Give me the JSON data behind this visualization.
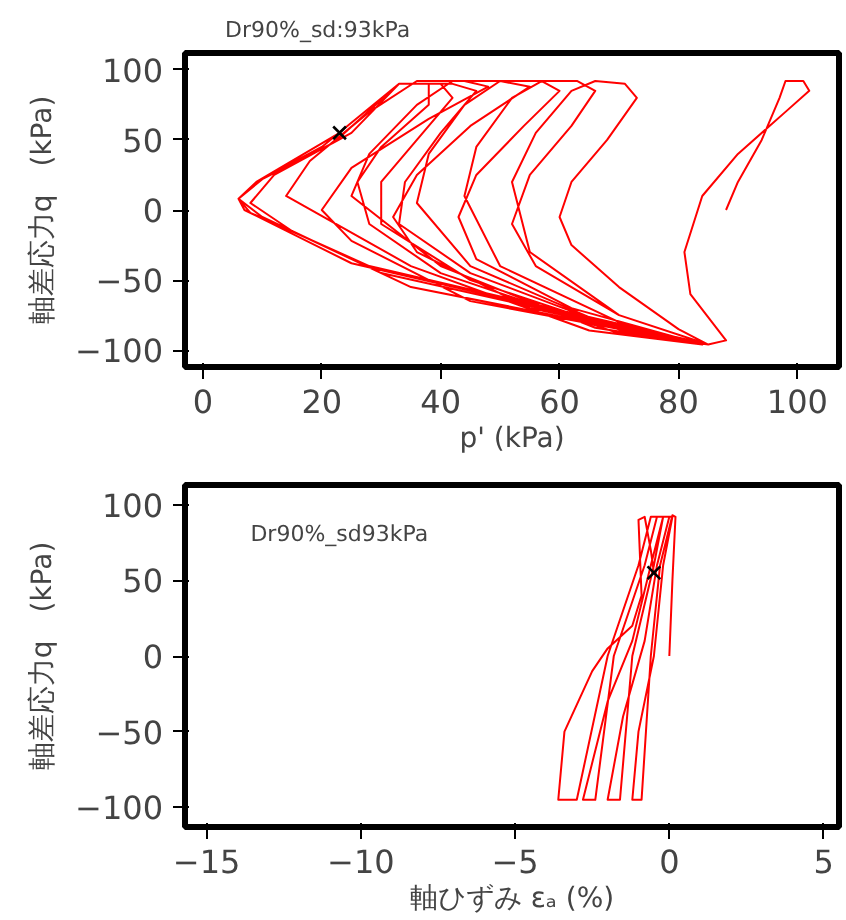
{
  "chart_data": [
    {
      "type": "line",
      "title": "Dr90%_sd:93kPa",
      "xlabel": "p' (kPa)",
      "ylabel": "軸差応力q　(kPa)",
      "xlim": [
        -3,
        107
      ],
      "ylim": [
        -112,
        112
      ],
      "xticks": [
        0,
        20,
        40,
        60,
        80,
        100
      ],
      "yticks": [
        -100,
        -50,
        0,
        50,
        100
      ],
      "grid": false,
      "line_style": "solid",
      "series": [
        {
          "color": "#ff0000",
          "x": [
            88,
            90,
            94,
            97,
            98,
            101,
            102,
            98,
            90,
            84,
            81,
            82,
            88,
            85,
            80,
            70,
            62,
            60,
            62,
            68,
            73,
            71,
            66,
            62,
            56,
            52,
            55,
            70,
            85,
            70,
            56,
            52,
            55,
            62,
            66,
            63,
            57,
            52,
            46,
            44,
            50,
            70,
            84,
            62,
            46,
            43,
            46,
            54,
            60,
            57,
            50,
            44,
            38,
            36,
            45,
            68,
            84,
            55,
            36,
            32,
            36,
            45,
            55,
            50,
            42,
            36,
            28,
            25,
            40,
            66,
            84,
            45,
            25,
            20,
            25,
            38,
            48,
            44,
            36,
            28,
            18,
            14,
            35,
            65,
            84,
            35,
            15,
            8,
            12,
            25,
            33,
            42,
            46,
            40,
            34,
            33,
            45,
            70,
            84,
            30,
            10,
            6,
            10,
            22,
            33,
            40,
            42,
            36,
            30,
            30,
            45,
            72,
            85,
            28,
            8,
            6,
            9,
            20,
            33,
            38,
            38,
            30,
            26,
            28,
            40,
            70,
            84,
            25,
            7,
            6,
            9,
            23
          ],
          "values": [
            0,
            20,
            50,
            80,
            92,
            92,
            85,
            70,
            40,
            10,
            -30,
            -60,
            -93,
            -96,
            -85,
            -55,
            -25,
            -5,
            20,
            50,
            80,
            90,
            92,
            85,
            55,
            20,
            -30,
            -75,
            -96,
            -75,
            -40,
            -10,
            25,
            60,
            85,
            92,
            92,
            80,
            45,
            10,
            -40,
            -80,
            -96,
            -70,
            -35,
            -5,
            25,
            60,
            85,
            92,
            92,
            75,
            40,
            5,
            -40,
            -82,
            -96,
            -70,
            -30,
            -5,
            25,
            60,
            88,
            92,
            92,
            75,
            40,
            10,
            -40,
            -84,
            -96,
            -65,
            -22,
            0,
            30,
            65,
            88,
            92,
            92,
            70,
            35,
            10,
            -40,
            -86,
            -96,
            -55,
            -15,
            5,
            25,
            55,
            90,
            90,
            85,
            55,
            20,
            -10,
            -45,
            -85,
            -96,
            -45,
            -5,
            8,
            22,
            48,
            90,
            90,
            80,
            50,
            20,
            -10,
            -50,
            -88,
            -96,
            -40,
            -2,
            8,
            20,
            45,
            90,
            90,
            75,
            45,
            20,
            -10,
            -45,
            -88,
            -96,
            -38,
            0,
            8,
            20,
            55
          ]
        },
        {
          "type": "scatter",
          "marker": "cross",
          "color": "#000000",
          "x": [
            23
          ],
          "values": [
            55
          ]
        }
      ]
    },
    {
      "type": "line",
      "xlabel": "軸ひずみ εₐ (%)",
      "ylabel": "軸差応力q　(kPa)",
      "xlim": [
        -15.7,
        5.5
      ],
      "ylim": [
        -113,
        113
      ],
      "xticks": [
        -15,
        -10,
        -5,
        0,
        5
      ],
      "yticks": [
        -100,
        -50,
        0,
        50,
        100
      ],
      "grid": false,
      "line_style": "solid",
      "annotations": [
        "Dr90%_sd93kPa"
      ],
      "series": [
        {
          "color": "#ff0000",
          "x": [
            0,
            0.1,
            0.2,
            0.1,
            -0.3,
            -0.6,
            -0.9,
            -1.2,
            -1.0,
            -0.5,
            -0.2,
            0.1,
            -0.2,
            -0.5,
            -1.2,
            -1.6,
            -2.0,
            -1.5,
            -0.8,
            -0.4,
            0.0,
            -0.4,
            -0.8,
            -1.8,
            -2.4,
            -2.8,
            -2.0,
            -1.2,
            -0.6,
            -0.2,
            -0.6,
            -1.0,
            -2.0,
            -3.0,
            -3.6,
            -3.4,
            -2.5,
            -2.0,
            -1.2,
            -0.9,
            -1.0,
            -0.8,
            -0.6,
            -0.5
          ],
          "values": [
            0,
            50,
            92,
            93,
            60,
            0,
            -95,
            -95,
            -50,
            0,
            60,
            92,
            92,
            60,
            0,
            -95,
            -95,
            -40,
            10,
            60,
            92,
            92,
            60,
            0,
            -95,
            -95,
            -30,
            10,
            60,
            92,
            92,
            60,
            0,
            -95,
            -95,
            -50,
            -10,
            5,
            20,
            40,
            90,
            92,
            70,
            55
          ]
        },
        {
          "type": "scatter",
          "marker": "cross",
          "color": "#000000",
          "x": [
            -0.5
          ],
          "values": [
            55
          ]
        }
      ]
    }
  ]
}
